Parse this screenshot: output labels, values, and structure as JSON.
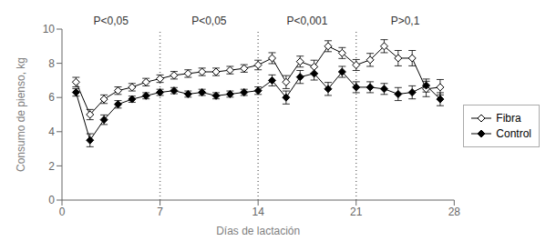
{
  "chart_data": {
    "type": "line",
    "xlabel": "Días de lactación",
    "ylabel": "Consumo de pienso, kg",
    "x": [
      1,
      2,
      3,
      4,
      5,
      6,
      7,
      8,
      9,
      10,
      11,
      12,
      13,
      14,
      15,
      16,
      17,
      18,
      19,
      20,
      21,
      22,
      23,
      24,
      25,
      26,
      27
    ],
    "series": [
      {
        "name": "Fibra",
        "color": "#000000",
        "marker": "diamond_open",
        "values": [
          6.9,
          5.0,
          5.9,
          6.4,
          6.6,
          6.9,
          7.1,
          7.3,
          7.4,
          7.5,
          7.5,
          7.6,
          7.7,
          7.9,
          8.3,
          6.9,
          8.1,
          7.8,
          9.0,
          8.6,
          7.9,
          8.2,
          9.0,
          8.3,
          8.3,
          6.5,
          6.6
        ],
        "errors": [
          0.28,
          0.3,
          0.25,
          0.22,
          0.22,
          0.22,
          0.22,
          0.22,
          0.22,
          0.22,
          0.22,
          0.22,
          0.22,
          0.28,
          0.32,
          0.38,
          0.32,
          0.38,
          0.32,
          0.32,
          0.32,
          0.38,
          0.38,
          0.45,
          0.45,
          0.45,
          0.45
        ]
      },
      {
        "name": "Control",
        "color": "#000000",
        "marker": "diamond",
        "values": [
          6.3,
          3.5,
          4.7,
          5.6,
          5.9,
          6.1,
          6.3,
          6.4,
          6.2,
          6.3,
          6.1,
          6.2,
          6.3,
          6.4,
          7.0,
          6.0,
          7.2,
          7.4,
          6.5,
          7.5,
          6.6,
          6.6,
          6.5,
          6.2,
          6.3,
          6.7,
          5.9
        ],
        "errors": [
          0.22,
          0.38,
          0.28,
          0.22,
          0.18,
          0.18,
          0.18,
          0.18,
          0.18,
          0.18,
          0.18,
          0.18,
          0.18,
          0.22,
          0.32,
          0.38,
          0.38,
          0.38,
          0.38,
          0.32,
          0.32,
          0.32,
          0.32,
          0.38,
          0.38,
          0.38,
          0.38
        ]
      }
    ],
    "vlines": {
      "values": [
        7,
        14,
        21
      ],
      "color": "#777777",
      "line_style": "dotted"
    },
    "annotations": [
      {
        "x": 3.5,
        "text": "P<0,05"
      },
      {
        "x": 10.5,
        "text": "P<0,05"
      },
      {
        "x": 17.5,
        "text": "P<0,001"
      },
      {
        "x": 24.5,
        "text": "P>0,1"
      }
    ],
    "xlim": [
      0,
      28
    ],
    "ylim": [
      0,
      10
    ],
    "xticks": [
      0,
      7,
      14,
      21,
      28
    ],
    "yticks": [
      0,
      2,
      4,
      6,
      8,
      10
    ],
    "grid": false,
    "legend": "right"
  }
}
